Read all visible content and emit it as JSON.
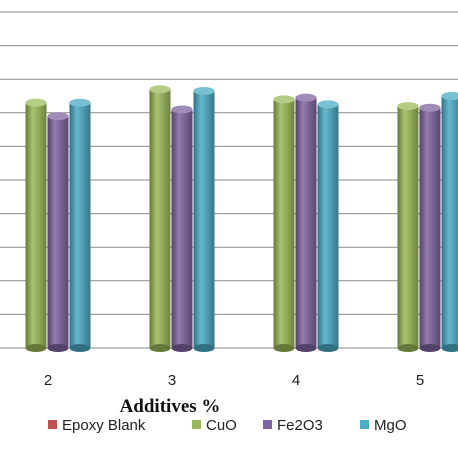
{
  "chart_data": {
    "type": "bar",
    "categories": [
      "2",
      "3",
      "4",
      "5"
    ],
    "series": [
      {
        "name": "Epoxy Blank",
        "color": "#C0504D",
        "values": [
          0,
          0,
          0,
          0
        ]
      },
      {
        "name": "CuO",
        "color": "#9BBB59",
        "values": [
          7.3,
          7.7,
          7.4,
          7.2
        ]
      },
      {
        "name": "Fe2O3",
        "color": "#8064A2",
        "values": [
          6.9,
          7.1,
          7.45,
          7.15
        ]
      },
      {
        "name": "MgO",
        "color": "#4BACC6",
        "values": [
          7.3,
          7.65,
          7.25,
          7.5
        ]
      }
    ],
    "xlabel": "Additives %",
    "ylabel": "",
    "ylim": [
      0,
      10
    ],
    "grid": true,
    "legend_position": "bottom"
  }
}
